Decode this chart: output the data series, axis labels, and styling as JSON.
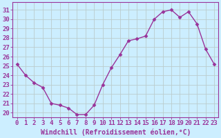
{
  "x": [
    0,
    1,
    2,
    3,
    4,
    5,
    6,
    7,
    8,
    9,
    10,
    11,
    12,
    13,
    14,
    15,
    16,
    17,
    18,
    19,
    20,
    21,
    22,
    23
  ],
  "y": [
    25.2,
    24.0,
    23.2,
    22.7,
    21.0,
    20.8,
    20.5,
    19.8,
    19.8,
    20.8,
    23.0,
    24.8,
    26.2,
    27.7,
    27.9,
    28.2,
    30.0,
    30.8,
    31.0,
    30.2,
    30.8,
    29.5,
    26.8,
    25.2
  ],
  "line_color": "#993399",
  "marker": "D",
  "marker_size": 2.5,
  "bg_color": "#cceeff",
  "grid_color": "#bbcccc",
  "xlabel": "Windchill (Refroidissement éolien,°C)",
  "ylabel_ticks": [
    20,
    21,
    22,
    23,
    24,
    25,
    26,
    27,
    28,
    29,
    30,
    31
  ],
  "xtick_labels": [
    "0",
    "1",
    "2",
    "3",
    "4",
    "5",
    "6",
    "7",
    "8",
    "9",
    "10",
    "11",
    "12",
    "13",
    "14",
    "15",
    "16",
    "17",
    "18",
    "19",
    "20",
    "21",
    "22",
    "23"
  ],
  "ylim": [
    19.5,
    31.8
  ],
  "xlim": [
    -0.5,
    23.5
  ],
  "font_color": "#993399",
  "tick_fontsize": 6.5,
  "xlabel_fontsize": 7,
  "linewidth": 1.0
}
